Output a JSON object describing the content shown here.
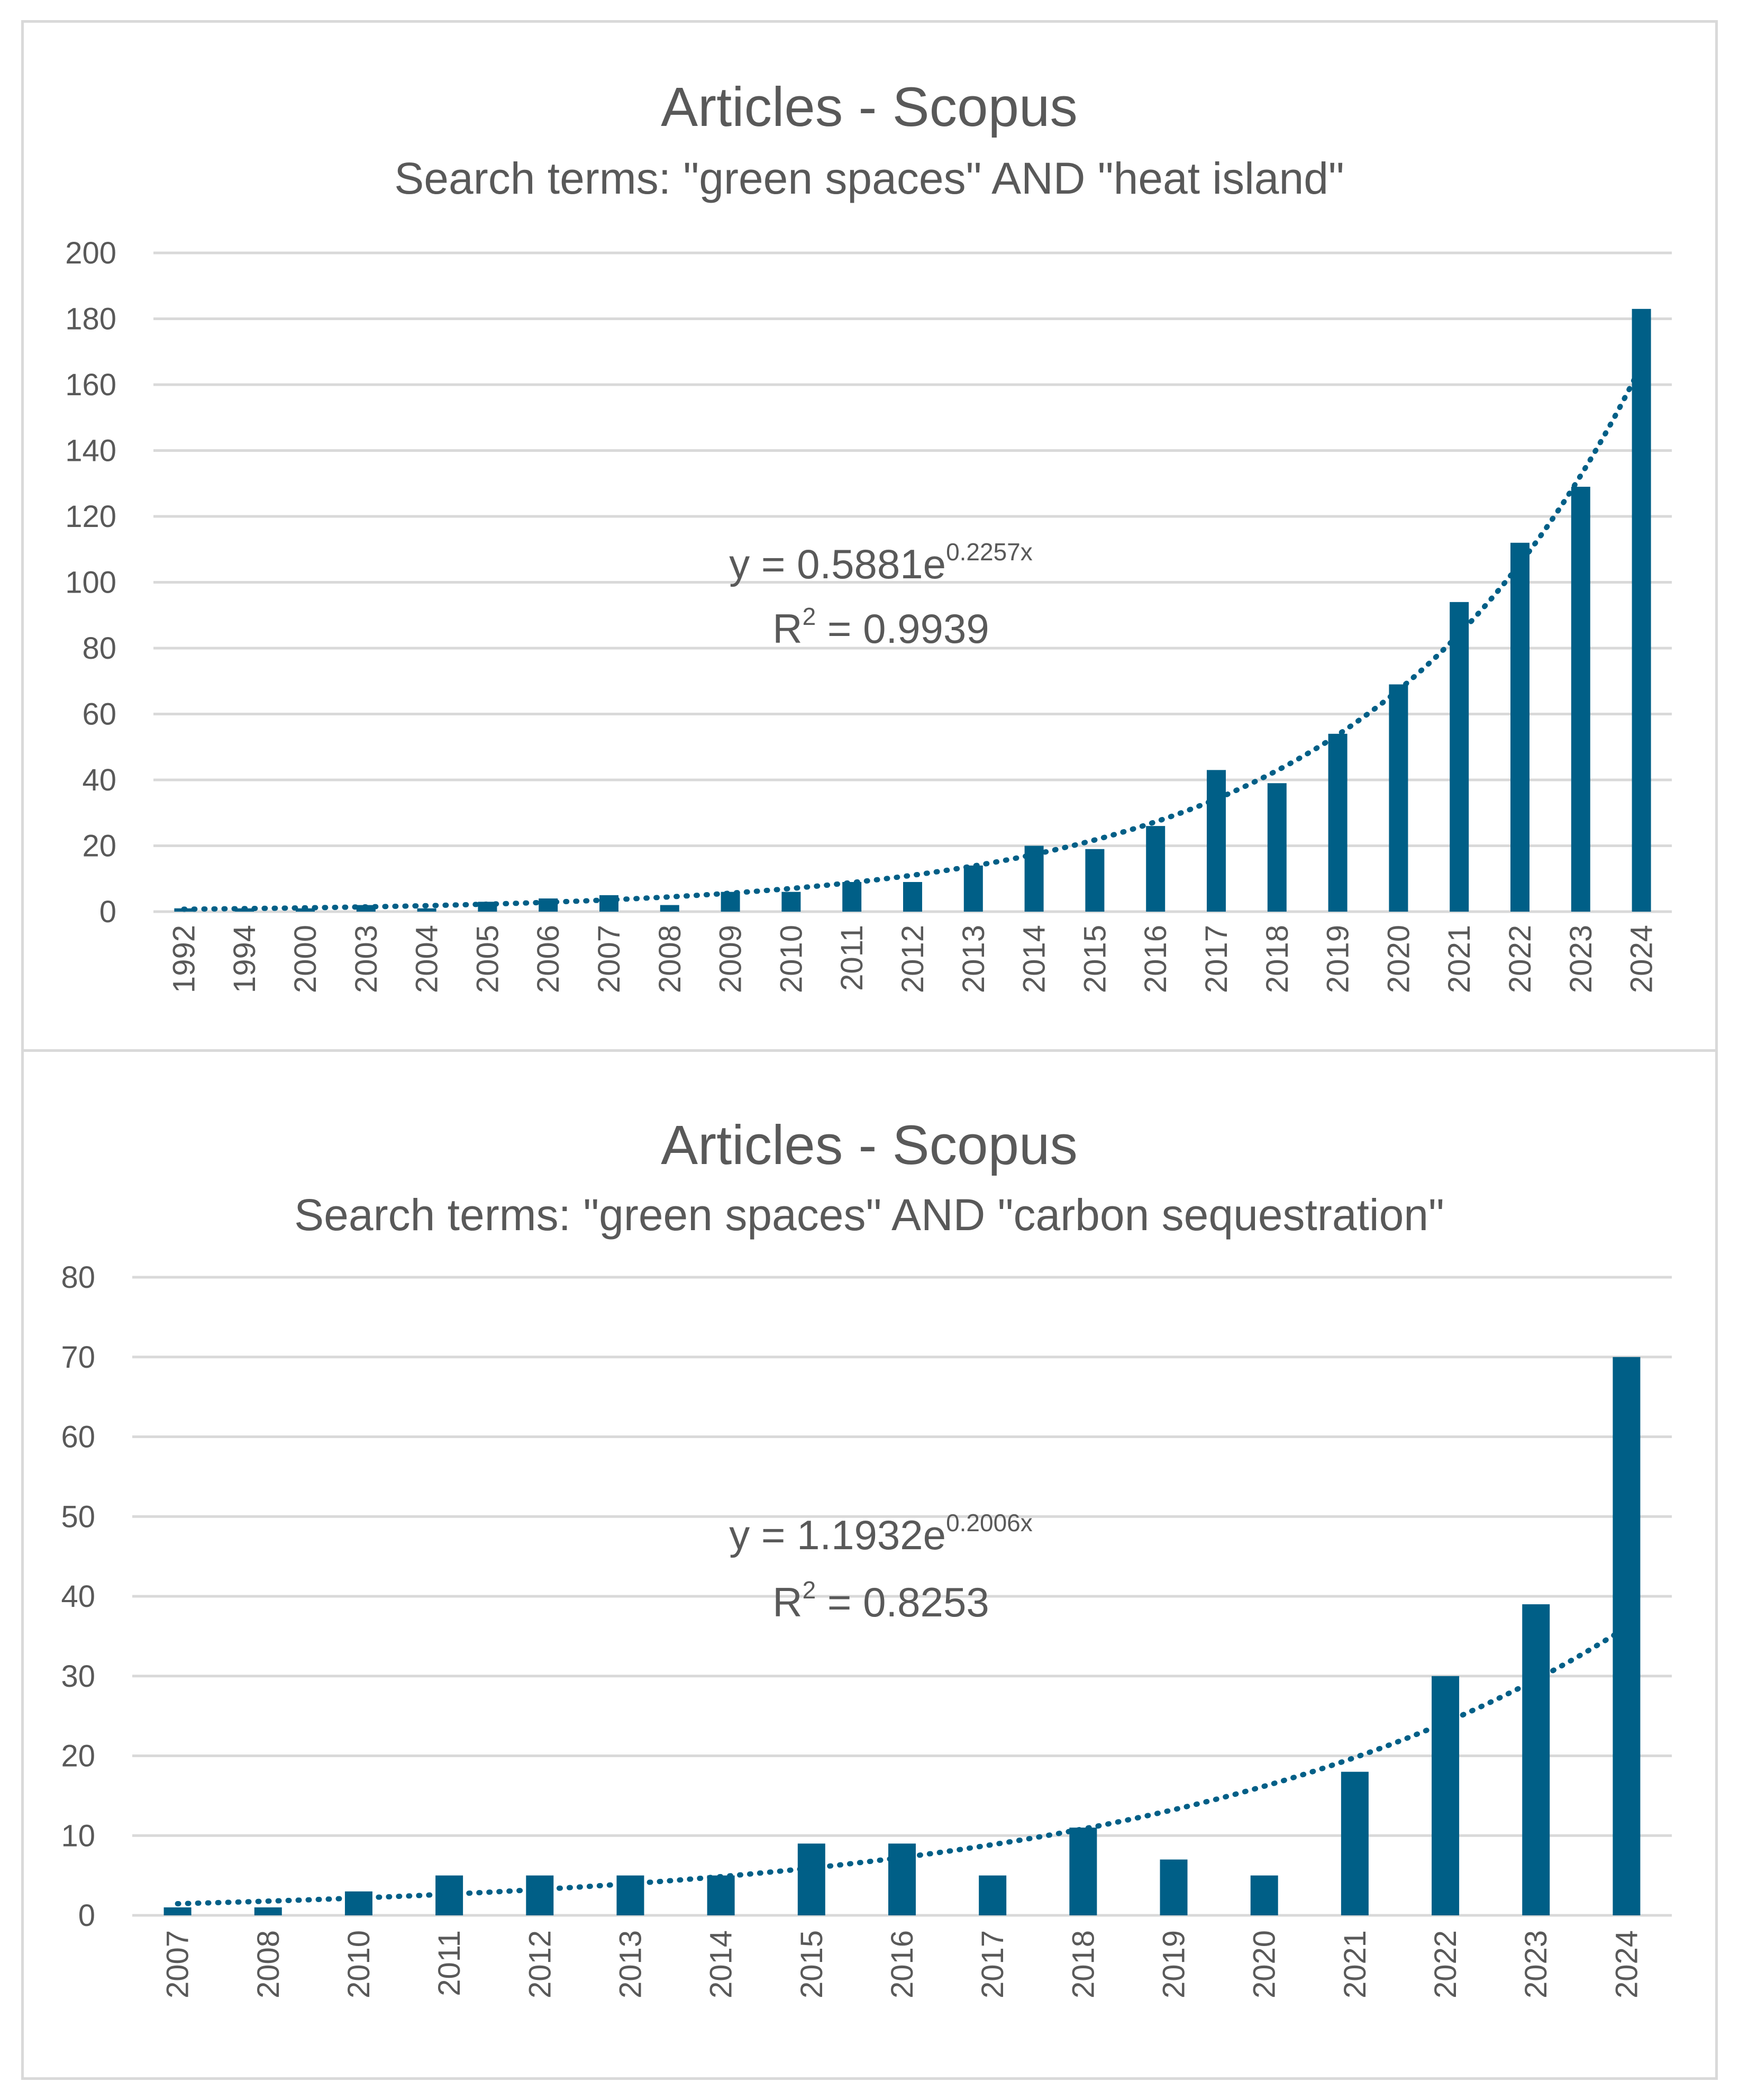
{
  "colors": {
    "bar": "#005f87",
    "grid": "#d9d9d9",
    "text": "#595959",
    "border": "#d9d9d9"
  },
  "chart_data": [
    {
      "type": "bar",
      "title": "Articles - Scopus",
      "subtitle": "Search terms: \"green spaces\" AND \"heat island\"",
      "categories": [
        "1992",
        "1994",
        "2000",
        "2003",
        "2004",
        "2005",
        "2006",
        "2007",
        "2008",
        "2009",
        "2010",
        "2011",
        "2012",
        "2013",
        "2014",
        "2015",
        "2016",
        "2017",
        "2018",
        "2019",
        "2020",
        "2021",
        "2022",
        "2023",
        "2024"
      ],
      "values": [
        1,
        1,
        1,
        2,
        1,
        3,
        4,
        5,
        2,
        6,
        6,
        9,
        9,
        14,
        20,
        19,
        26,
        43,
        39,
        54,
        69,
        94,
        112,
        129,
        183
      ],
      "ylim": [
        0,
        200
      ],
      "yticks": [
        0,
        20,
        40,
        60,
        80,
        100,
        120,
        140,
        160,
        180,
        200
      ],
      "ytick_labels": [
        "0",
        "20",
        "40",
        "60",
        "80",
        "100",
        "120",
        "140",
        "160",
        "180",
        "200"
      ],
      "grid": true,
      "trendline": {
        "type": "exponential",
        "a": 0.5881,
        "b": 0.2257,
        "equation_prefix": "y = 0.5881e",
        "equation_exponent": "0.2257x",
        "r2_prefix": "R",
        "r2_sup": "2",
        "r2_suffix": " = 0.9939"
      }
    },
    {
      "type": "bar",
      "title": "Articles - Scopus",
      "subtitle": "Search terms: \"green spaces\" AND \"carbon sequestration\"",
      "categories": [
        "2007",
        "2008",
        "2010",
        "2011",
        "2012",
        "2013",
        "2014",
        "2015",
        "2016",
        "2017",
        "2018",
        "2019",
        "2020",
        "2021",
        "2022",
        "2023",
        "2024"
      ],
      "values": [
        1,
        1,
        3,
        5,
        5,
        5,
        5,
        9,
        9,
        5,
        11,
        7,
        5,
        18,
        30,
        39,
        70
      ],
      "ylim": [
        0,
        80
      ],
      "yticks": [
        0,
        10,
        20,
        30,
        40,
        50,
        60,
        70,
        80
      ],
      "ytick_labels": [
        "0",
        "10",
        "20",
        "30",
        "40",
        "50",
        "60",
        "70",
        "80"
      ],
      "grid": true,
      "trendline": {
        "type": "exponential",
        "a": 1.1932,
        "b": 0.2006,
        "equation_prefix": "y = 1.1932e",
        "equation_exponent": "0.2006x",
        "r2_prefix": "R",
        "r2_sup": "2",
        "r2_suffix": " = 0.8253"
      }
    }
  ]
}
